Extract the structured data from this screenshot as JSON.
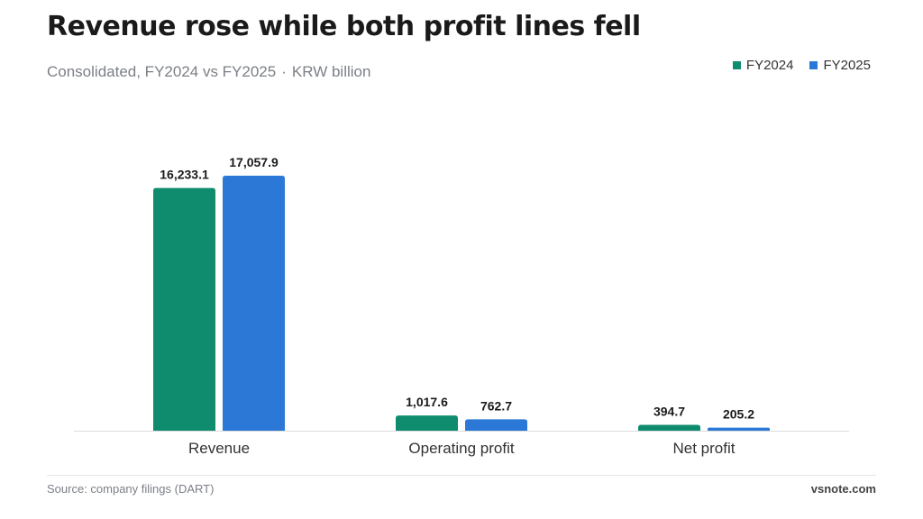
{
  "title": "Revenue rose while both profit lines fell",
  "subtitle": {
    "scope": "Consolidated, FY2024 vs FY2025",
    "separator": "·",
    "unit": "KRW billion"
  },
  "footer": {
    "source": "Source: company filings (DART)",
    "brand": "vsnote.com"
  },
  "colors": {
    "FY2024": "#0f8c6e",
    "FY2025": "#2b78d6"
  },
  "chart_data": {
    "type": "bar",
    "categories": [
      "Revenue",
      "Operating profit",
      "Net profit"
    ],
    "series": [
      {
        "name": "FY2024",
        "values": [
          16233.1,
          1017.6,
          394.7
        ],
        "labels": [
          "16,233.1",
          "1,017.6",
          "394.7"
        ]
      },
      {
        "name": "FY2025",
        "values": [
          17057.9,
          762.7,
          205.2
        ],
        "labels": [
          "17,057.9",
          "762.7",
          "205.2"
        ]
      }
    ],
    "title": "Revenue rose while both profit lines fell",
    "ylabel": "",
    "xlabel": "",
    "ylim": [
      0,
      17057.9
    ],
    "grid": false,
    "legend": "top-right"
  }
}
